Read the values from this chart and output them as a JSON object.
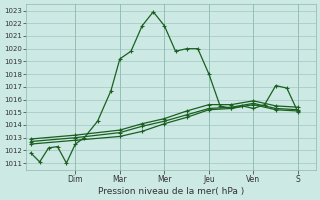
{
  "xlabel": "Pression niveau de la mer( hPa )",
  "background_color": "#cce9e4",
  "grid_color": "#aacccc",
  "line_color": "#1a6020",
  "ylim": [
    1010.5,
    1023.5
  ],
  "yticks": [
    1011,
    1012,
    1013,
    1014,
    1015,
    1016,
    1017,
    1018,
    1019,
    1020,
    1021,
    1022,
    1023
  ],
  "day_labels": [
    "Dim",
    "Mar",
    "Mer",
    "Jeu",
    "Ven",
    "S"
  ],
  "day_positions": [
    2.0,
    4.0,
    6.0,
    8.0,
    10.0,
    12.0
  ],
  "xlim": [
    -0.2,
    12.8
  ],
  "series_main_x": [
    0,
    0.4,
    0.8,
    1.2,
    1.6,
    2.0,
    2.4,
    3.0,
    3.6,
    4.0,
    4.5,
    5.0,
    5.5,
    6.0,
    6.5,
    7.0,
    7.5,
    8.0,
    8.5,
    9.0,
    9.5,
    10.0,
    10.5,
    11.0,
    11.5,
    12.0
  ],
  "series_main_y": [
    1011.8,
    1011.1,
    1012.2,
    1012.3,
    1011.0,
    1012.5,
    1013.0,
    1014.3,
    1016.7,
    1019.2,
    1019.8,
    1021.8,
    1022.9,
    1021.8,
    1019.8,
    1020.0,
    1020.0,
    1018.0,
    1015.5,
    1015.3,
    1015.5,
    1015.3,
    1015.6,
    1017.1,
    1016.9,
    1015.0
  ],
  "series_b_x": [
    0,
    2,
    4,
    5.0,
    6.0,
    7.0,
    8.0,
    9.0,
    10.0,
    11.0,
    12.0
  ],
  "series_b_y": [
    1012.5,
    1012.8,
    1013.1,
    1013.5,
    1014.1,
    1014.6,
    1015.2,
    1015.3,
    1015.6,
    1015.2,
    1015.1
  ],
  "series_c_x": [
    0,
    2,
    4,
    5.0,
    6.0,
    7.0,
    8.0,
    9.0,
    10.0,
    11.0,
    12.0
  ],
  "series_c_y": [
    1012.7,
    1013.0,
    1013.4,
    1013.9,
    1014.3,
    1014.8,
    1015.3,
    1015.4,
    1015.7,
    1015.3,
    1015.2
  ],
  "series_d_x": [
    0,
    2,
    4,
    5.0,
    6.0,
    7.0,
    8.0,
    9.0,
    10.0,
    11.0,
    12.0
  ],
  "series_d_y": [
    1012.9,
    1013.2,
    1013.6,
    1014.1,
    1014.5,
    1015.1,
    1015.6,
    1015.6,
    1015.9,
    1015.5,
    1015.4
  ]
}
